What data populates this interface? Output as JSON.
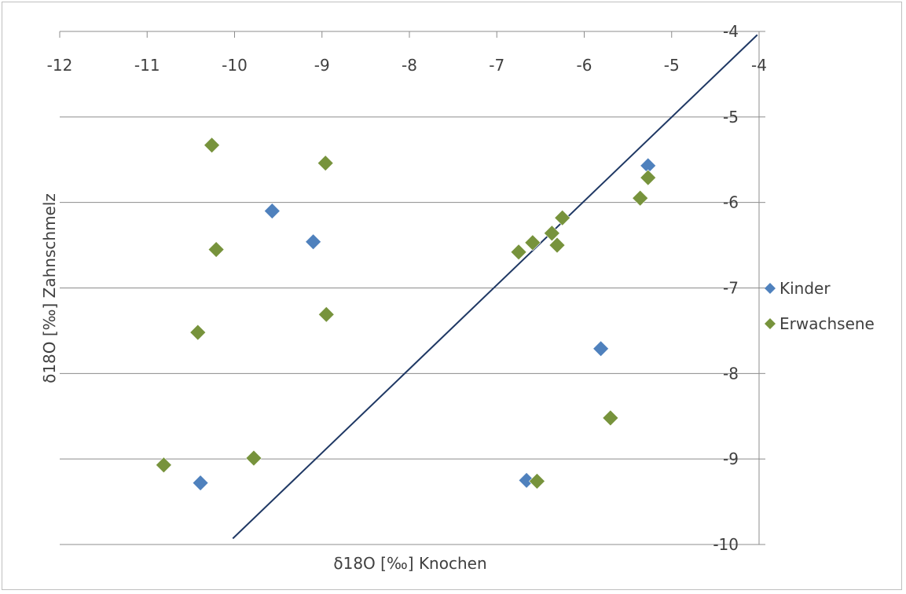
{
  "chart_data": {
    "type": "scatter",
    "xlabel": "δ18O [‰] Knochen",
    "ylabel": "δ18O [‰] Zahnschmelz",
    "xlim": [
      -12,
      -4
    ],
    "ylim": [
      -10,
      -4
    ],
    "x_ticks": [
      "-12",
      "-11",
      "-10",
      "-9",
      "-8",
      "-7",
      "-6",
      "-5",
      "-4"
    ],
    "y_ticks": [
      "-4",
      "-5",
      "-6",
      "-7",
      "-8",
      "-9",
      "-10"
    ],
    "grid": "horizontal",
    "x_axis_position": "top",
    "y_axis_position": "right",
    "legend_position": "right",
    "reference_line": {
      "x": [
        -10.02,
        -4.02
      ],
      "y": [
        -9.93,
        -4.04
      ],
      "color": "#1f3864"
    },
    "series": [
      {
        "name": "Kinder",
        "color": "#4f81bd",
        "points": [
          {
            "x": -5.27,
            "y": -5.57
          },
          {
            "x": -9.57,
            "y": -6.1
          },
          {
            "x": -9.1,
            "y": -6.46
          },
          {
            "x": -5.81,
            "y": -7.71
          },
          {
            "x": -10.39,
            "y": -9.28
          },
          {
            "x": -6.66,
            "y": -9.25
          }
        ]
      },
      {
        "name": "Erwachsene",
        "color": "#77933c",
        "points": [
          {
            "x": -10.26,
            "y": -5.33
          },
          {
            "x": -8.96,
            "y": -5.54
          },
          {
            "x": -5.27,
            "y": -5.71
          },
          {
            "x": -5.36,
            "y": -5.95
          },
          {
            "x": -6.25,
            "y": -6.18
          },
          {
            "x": -6.37,
            "y": -6.36
          },
          {
            "x": -6.59,
            "y": -6.47
          },
          {
            "x": -6.31,
            "y": -6.5
          },
          {
            "x": -6.75,
            "y": -6.58
          },
          {
            "x": -10.21,
            "y": -6.55
          },
          {
            "x": -8.95,
            "y": -7.31
          },
          {
            "x": -10.42,
            "y": -7.52
          },
          {
            "x": -5.7,
            "y": -8.52
          },
          {
            "x": -9.78,
            "y": -8.99
          },
          {
            "x": -10.81,
            "y": -9.07
          },
          {
            "x": -6.54,
            "y": -9.26
          }
        ]
      }
    ]
  }
}
